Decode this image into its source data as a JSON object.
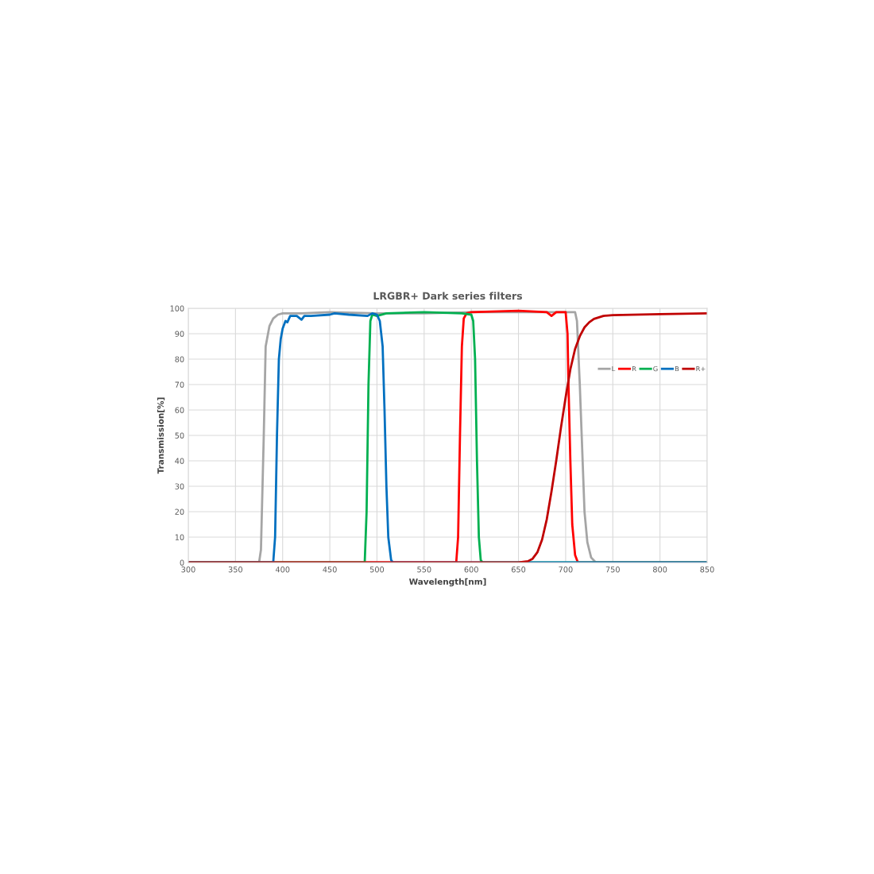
{
  "chart_data": {
    "type": "line",
    "title": "LRGBR+ Dark series filters",
    "xlabel": "Wavelength[nm]",
    "ylabel": "Transmission[%]",
    "xlim": [
      300,
      850
    ],
    "xticks": [
      300,
      350,
      400,
      450,
      500,
      550,
      600,
      650,
      700,
      750,
      800,
      850
    ],
    "ylim": [
      0,
      100
    ],
    "yticks": [
      0,
      10,
      20,
      30,
      40,
      50,
      60,
      70,
      80,
      90,
      100
    ],
    "grid": true,
    "legend": "right",
    "marker": "none",
    "line_style": "solid",
    "series": [
      {
        "name": "L",
        "color": "#a5a5a5",
        "x": [
          300,
          375,
          377,
          380,
          382,
          384,
          386,
          390,
          395,
          400,
          420,
          450,
          500,
          550,
          600,
          650,
          700,
          710,
          712,
          715,
          718,
          720,
          723,
          727,
          732,
          850
        ],
        "values": [
          0,
          0,
          5,
          50,
          85,
          89,
          93,
          96,
          97.5,
          98,
          98,
          98.5,
          98,
          98,
          98.5,
          98.5,
          98.5,
          98.5,
          95,
          70,
          40,
          20,
          8,
          2,
          0,
          0
        ]
      },
      {
        "name": "R",
        "color": "#ff0000",
        "x": [
          300,
          584,
          586,
          588,
          590,
          592,
          595,
          600,
          650,
          680,
          685,
          690,
          700,
          702,
          703,
          705,
          707,
          710,
          713,
          850
        ],
        "values": [
          0,
          0,
          10,
          50,
          85,
          96,
          98,
          98.5,
          99,
          98.5,
          97,
          98.5,
          98.5,
          90,
          70,
          40,
          15,
          3,
          0,
          0
        ]
      },
      {
        "name": "G",
        "color": "#00b050",
        "x": [
          300,
          487,
          489,
          491,
          493,
          495,
          500,
          510,
          550,
          590,
          600,
          602,
          604,
          606,
          608,
          610,
          612,
          850
        ],
        "values": [
          0,
          0,
          20,
          70,
          95,
          97.5,
          97,
          98,
          98.5,
          98,
          97.5,
          95,
          80,
          40,
          10,
          1,
          0,
          0
        ]
      },
      {
        "name": "B",
        "color": "#0070c0",
        "x": [
          300,
          390,
          392,
          394,
          396,
          398,
          400,
          403,
          405,
          408,
          415,
          420,
          423,
          430,
          450,
          455,
          470,
          490,
          495,
          500,
          503,
          506,
          508,
          510,
          512,
          515,
          517,
          850
        ],
        "values": [
          0,
          0,
          10,
          50,
          80,
          88,
          92,
          95,
          94.5,
          97,
          97,
          95.5,
          97,
          97,
          97.5,
          98,
          97.5,
          97,
          98,
          97.5,
          95,
          85,
          60,
          30,
          10,
          1,
          0,
          0
        ]
      },
      {
        "name": "R+",
        "color": "#c00000",
        "x": [
          300,
          650,
          660,
          665,
          670,
          675,
          680,
          685,
          690,
          695,
          700,
          705,
          710,
          715,
          720,
          725,
          730,
          740,
          750,
          800,
          850
        ],
        "values": [
          0,
          0,
          0.5,
          1.5,
          4,
          9,
          17,
          28,
          40,
          53,
          65,
          76,
          84,
          89,
          92.5,
          94.5,
          95.8,
          97,
          97.3,
          97.7,
          98
        ]
      }
    ]
  }
}
